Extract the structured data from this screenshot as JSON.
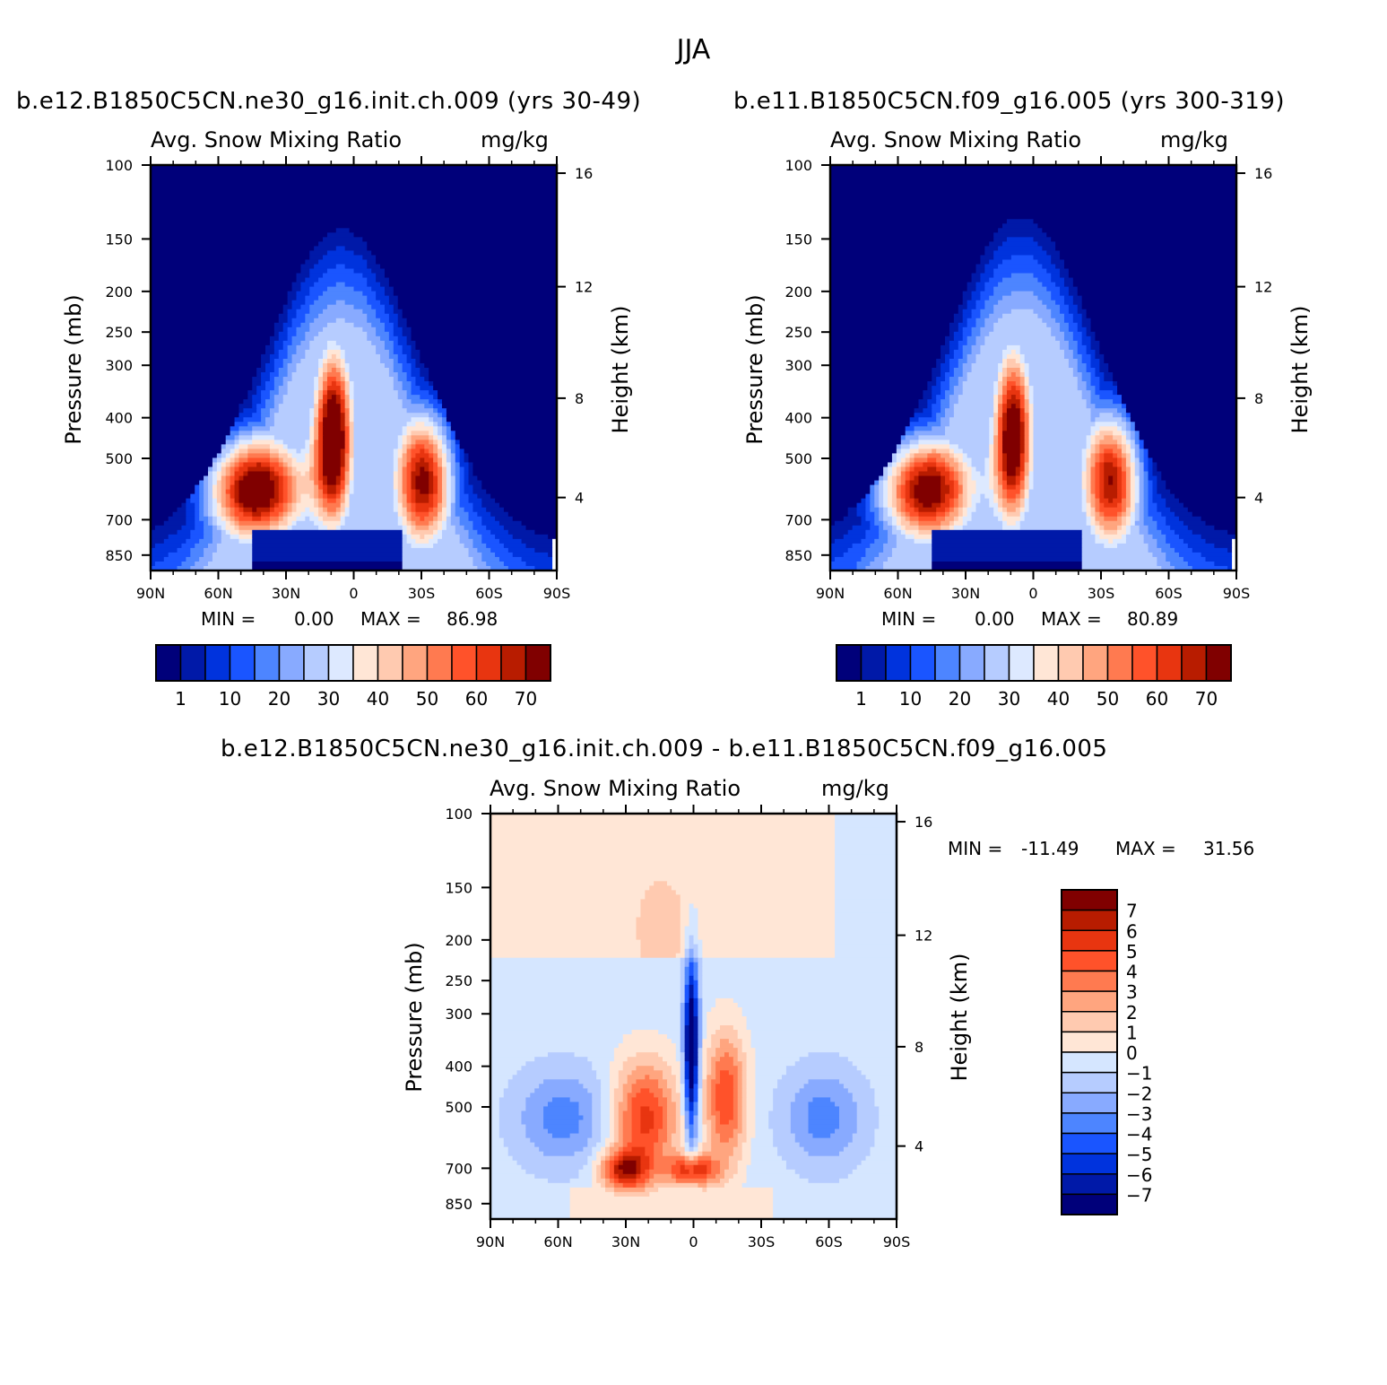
{
  "page_title": "JJA",
  "colors": {
    "abs_fill": [
      "#00007a",
      "#0019a8",
      "#0033dd",
      "#1a55ff",
      "#4d85ff",
      "#88aaff",
      "#b6ccff",
      "#dde9ff",
      "#ffe6d6",
      "#ffcab0",
      "#ffa57f",
      "#ff7a50",
      "#ff522a",
      "#e83510",
      "#b81c00",
      "#800000"
    ],
    "diff_fill": [
      "#00007a",
      "#0019a8",
      "#0033dd",
      "#1a55ff",
      "#4d85ff",
      "#88aaff",
      "#b6ccff",
      "#d5e6ff",
      "#ffe6d6",
      "#ffcab0",
      "#ffa57f",
      "#ff7a50",
      "#ff522a",
      "#e83510",
      "#b81c00",
      "#800000"
    ]
  },
  "chart_data": [
    {
      "type": "heatmap",
      "title": "b.e12.B1850C5CN.ne30_g16.init.ch.009 (yrs 30-49)",
      "variable_label": "Avg. Snow Mixing Ratio",
      "units_label": "mg/kg",
      "ylabel": "Pressure (mb)",
      "ylabel_right": "Height (km)",
      "x_ticks": [
        "90N",
        "60N",
        "30N",
        "0",
        "30S",
        "60S",
        "90S"
      ],
      "y_ticks": [
        "100",
        "150",
        "200",
        "250",
        "300",
        "400",
        "500",
        "700",
        "850"
      ],
      "y_right_ticks": [
        "16",
        "12",
        "8",
        "4"
      ],
      "min_label": "MIN =",
      "min_value": "0.00",
      "max_label": "MAX =",
      "max_value": "86.98",
      "colorbar_levels": [
        "1",
        "10",
        "20",
        "30",
        "40",
        "50",
        "60",
        "70"
      ],
      "features": {
        "ceiling_top": 0.15,
        "ceiling_height": 0.78,
        "lobe1": {
          "x": 0.26,
          "p": 0.3,
          "v": 0.95
        },
        "lobe2": {
          "x": 0.45,
          "p": 0.5,
          "v": 1.0
        },
        "lobe3": {
          "x": 0.67,
          "p": 0.32,
          "v": 0.85
        },
        "low_cap": 0.62
      }
    },
    {
      "type": "heatmap",
      "title": "b.e11.B1850C5CN.f09_g16.005 (yrs 300-319)",
      "variable_label": "Avg. Snow Mixing Ratio",
      "units_label": "mg/kg",
      "ylabel": "Pressure (mb)",
      "ylabel_right": "Height (km)",
      "x_ticks": [
        "90N",
        "60N",
        "30N",
        "0",
        "30S",
        "60S",
        "90S"
      ],
      "y_ticks": [
        "100",
        "150",
        "200",
        "250",
        "300",
        "400",
        "500",
        "700",
        "850"
      ],
      "y_right_ticks": [
        "16",
        "12",
        "8",
        "4"
      ],
      "min_label": "MIN =",
      "min_value": "0.00",
      "max_label": "MAX =",
      "max_value": "80.89",
      "colorbar_levels": [
        "1",
        "10",
        "20",
        "30",
        "40",
        "50",
        "60",
        "70"
      ],
      "features": {
        "ceiling_top": 0.12,
        "ceiling_height": 0.8,
        "lobe1": {
          "x": 0.24,
          "p": 0.32,
          "v": 0.9
        },
        "lobe2": {
          "x": 0.45,
          "p": 0.48,
          "v": 0.95
        },
        "lobe3": {
          "x": 0.69,
          "p": 0.33,
          "v": 0.82
        },
        "low_cap": 0.6
      }
    },
    {
      "type": "heatmap",
      "title": "b.e12.B1850C5CN.ne30_g16.init.ch.009 - b.e11.B1850C5CN.f09_g16.005",
      "variable_label": "Avg. Snow Mixing Ratio",
      "units_label": "mg/kg",
      "ylabel": "Pressure (mb)",
      "ylabel_right": "Height (km)",
      "x_ticks": [
        "90N",
        "60N",
        "30N",
        "0",
        "30S",
        "60S",
        "90S"
      ],
      "y_ticks": [
        "100",
        "150",
        "200",
        "250",
        "300",
        "400",
        "500",
        "700",
        "850"
      ],
      "y_right_ticks": [
        "16",
        "12",
        "8",
        "4"
      ],
      "min_label": "MIN =",
      "min_value": "-11.49",
      "max_label": "MAX =",
      "max_value": "31.56",
      "colorbar_levels": [
        "7",
        "6",
        "5",
        "4",
        "3",
        "2",
        "1",
        "0",
        "-1",
        "-2",
        "-3",
        "-4",
        "-5",
        "-6",
        "-7"
      ]
    }
  ]
}
